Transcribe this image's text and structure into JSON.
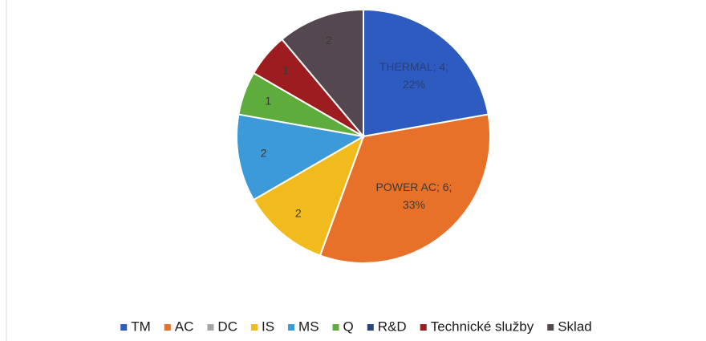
{
  "chart_data": {
    "type": "pie",
    "categories": [
      "TM",
      "AC",
      "DC",
      "IS",
      "MS",
      "Q",
      "R&D",
      "Technické služby",
      "Sklad"
    ],
    "values": [
      4,
      6,
      0,
      2,
      2,
      1,
      0,
      1,
      2
    ],
    "value_labels": [
      "THERMAL; 4; 22%",
      "POWER AC; 6; 33%",
      null,
      "2",
      "2",
      "1",
      null,
      "1",
      "2"
    ],
    "colors": [
      "#2e5bbf",
      "#e8712a",
      "#a5a5a5",
      "#f2bb1d",
      "#3d9ad8",
      "#5eac3c",
      "#274479",
      "#9c1c1f",
      "#55474f"
    ],
    "legend": "bottom"
  }
}
